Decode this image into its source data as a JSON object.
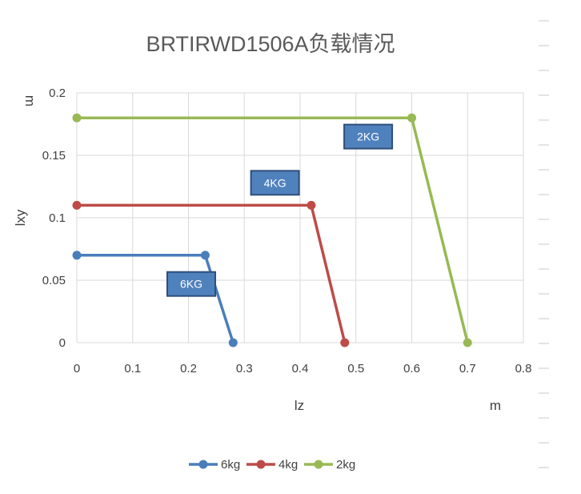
{
  "chart_data": {
    "type": "line",
    "title": "BRTIRWD1506A负载情况",
    "xlabel": "lz",
    "ylabel": "lxy",
    "x_unit": "m",
    "y_unit": "m",
    "xlim": [
      0,
      0.8
    ],
    "ylim": [
      0,
      0.2
    ],
    "x_ticks": [
      "0",
      "0.1",
      "0.2",
      "0.3",
      "0.4",
      "0.5",
      "0.6",
      "0.7",
      "0.8"
    ],
    "y_ticks": [
      "0",
      "0.05",
      "0.1",
      "0.15",
      "0.2"
    ],
    "grid": true,
    "legend_position": "bottom",
    "series": [
      {
        "name": "6kg",
        "color": "#4a7ebb",
        "x": [
          0,
          0.23,
          0.28
        ],
        "y": [
          0.07,
          0.07,
          0
        ],
        "tag": "6KG"
      },
      {
        "name": "4kg",
        "color": "#be4b48",
        "x": [
          0,
          0.42,
          0.48
        ],
        "y": [
          0.11,
          0.11,
          0
        ],
        "tag": "4KG"
      },
      {
        "name": "2kg",
        "color": "#98b954",
        "x": [
          0,
          0.6,
          0.7
        ],
        "y": [
          0.18,
          0.18,
          0
        ],
        "tag": "2KG"
      }
    ],
    "tag_style": {
      "fill": "#4f81bd",
      "stroke": "#2e4f7a"
    }
  }
}
